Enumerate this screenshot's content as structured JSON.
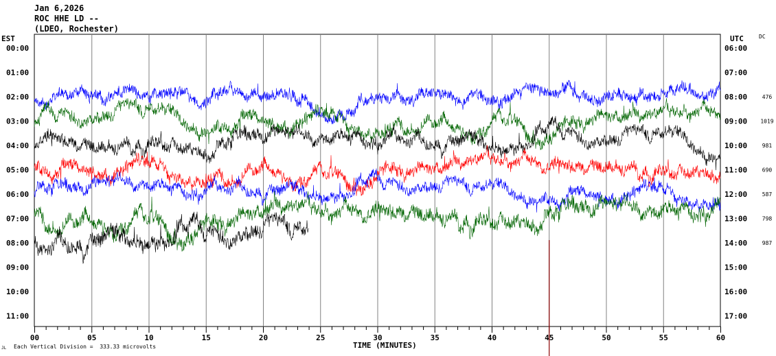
{
  "header": {
    "date": "Jan 6,2026",
    "station": "ROC HHE LD --",
    "network": "(LDEO, Rochester)"
  },
  "labels": {
    "left_tz": "EST",
    "right_tz": "UTC",
    "dc": "DC",
    "xlabel": "TIME (MINUTES)",
    "footer": "Each Vertical Division =  333.33 microvolts",
    "corner_mark": "JL"
  },
  "chart_data": {
    "type": "line",
    "title": "ROC HHE LD -- (LDEO, Rochester)",
    "xlabel": "TIME (MINUTES)",
    "xlim": [
      0,
      60
    ],
    "x_ticks": [
      "00",
      "05",
      "10",
      "15",
      "20",
      "25",
      "30",
      "35",
      "40",
      "45",
      "50",
      "55",
      "60"
    ],
    "est_hours": [
      "00:00",
      "01:00",
      "02:00",
      "03:00",
      "04:00",
      "05:00",
      "06:00",
      "07:00",
      "08:00",
      "09:00",
      "10:00",
      "11:00"
    ],
    "utc_hours": [
      "06:00",
      "07:00",
      "08:00",
      "09:00",
      "10:00",
      "11:00",
      "12:00",
      "13:00",
      "14:00",
      "15:00",
      "16:00",
      "17:00"
    ],
    "dc_offsets": [
      {
        "hour": "02:00",
        "value": "476"
      },
      {
        "hour": "03:00",
        "value": "1019"
      },
      {
        "hour": "04:00",
        "value": "981"
      },
      {
        "hour": "05:00",
        "value": "690"
      },
      {
        "hour": "06:00",
        "value": "587"
      },
      {
        "hour": "07:00",
        "value": "798"
      },
      {
        "hour": "08:00",
        "value": "987"
      }
    ],
    "traces": [
      {
        "est": "02:00",
        "color": "#0000ff",
        "amplitude": 0.55,
        "end_minute": 60
      },
      {
        "est": "03:00",
        "color": "#006400",
        "amplitude": 0.6,
        "end_minute": 60
      },
      {
        "est": "04:00",
        "color": "#000000",
        "amplitude": 0.6,
        "end_minute": 60
      },
      {
        "est": "05:00",
        "color": "#ff0000",
        "amplitude": 0.6,
        "end_minute": 60
      },
      {
        "est": "06:00",
        "color": "#0000ff",
        "amplitude": 0.55,
        "end_minute": 60
      },
      {
        "est": "07:00",
        "color": "#006400",
        "amplitude": 0.7,
        "end_minute": 60
      },
      {
        "est": "08:00",
        "color": "#000000",
        "amplitude": 0.75,
        "end_minute": 24
      }
    ],
    "marker_minute": 45,
    "marker_color": "#8b0000",
    "units_per_division": "333.33 microvolts",
    "grid": true
  }
}
